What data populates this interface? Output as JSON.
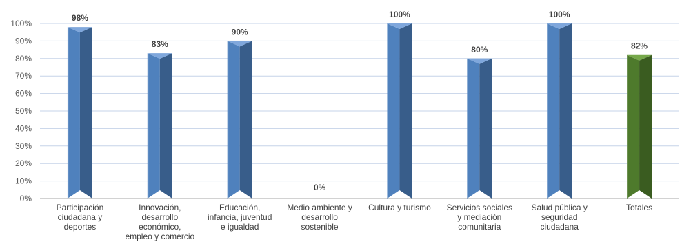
{
  "chart_data": {
    "type": "bar",
    "categories": [
      [
        "Participación",
        "ciudadana y",
        "deportes"
      ],
      [
        "Innovación,",
        "desarrollo",
        "económico,",
        "empleo y comercio"
      ],
      [
        "Educación,",
        "infancia, juventud",
        "e igualdad"
      ],
      [
        "Medio ambiente y",
        "desarrollo",
        "sostenible"
      ],
      [
        "Cultura y turismo"
      ],
      [
        "Servicios sociales",
        "y mediación",
        "comunitaria"
      ],
      [
        "Salud pública y",
        "seguridad",
        "ciudadana"
      ],
      [
        "Totales"
      ]
    ],
    "values": [
      98,
      83,
      90,
      0,
      100,
      80,
      100,
      82
    ],
    "data_labels": [
      "98%",
      "83%",
      "90%",
      "0%",
      "100%",
      "80%",
      "100%",
      "82%"
    ],
    "y_ticks": [
      "0%",
      "10%",
      "20%",
      "30%",
      "40%",
      "50%",
      "60%",
      "70%",
      "80%",
      "90%",
      "100%"
    ],
    "ylim": [
      0,
      100
    ],
    "grid": true,
    "colors": {
      "bar_front": "#4F81BD",
      "bar_side": "#385D8A",
      "bar_top": "#7FA7DC",
      "total_front": "#4E7A2C",
      "total_side": "#3A5C20",
      "total_top": "#76A84A",
      "grid": "#C5D3E8",
      "axis": "#A6A6A6"
    }
  }
}
